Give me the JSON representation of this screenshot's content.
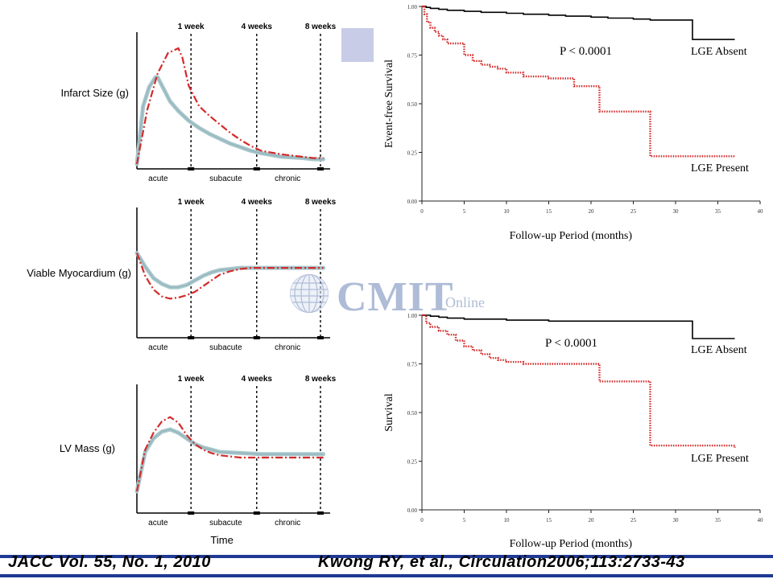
{
  "footer": {
    "ref_left": "JACC Vol. 55, No. 1, 2010",
    "ref_right": "Kwong RY, et al., Circulation2006;113:2733-43"
  },
  "watermark": {
    "name": "CMIT",
    "sub": "Online"
  },
  "colors": {
    "red": "#d42a2a",
    "teal": "#a9c7cc",
    "black": "#000000",
    "accent_square": "#c8cce6",
    "footer_blue": "#1f3a93"
  },
  "chart_data": [
    {
      "type": "line",
      "ylabel": "Infarct Size (g)",
      "xlabel": "",
      "time_markers": [
        "1 week",
        "4 weeks",
        "8 weeks"
      ],
      "phases": [
        "acute",
        "subacute",
        "chronic"
      ],
      "series": [
        {
          "style": "solid-teal",
          "x": [
            0,
            0.3,
            0.6,
            0.9,
            1.0,
            1.3,
            1.6,
            2.0,
            2.5,
            3.0,
            3.5,
            4.0,
            4.5,
            5.0,
            5.5,
            6.0,
            7.0,
            8.0,
            8.5,
            9.0
          ],
          "y": [
            0,
            48,
            64,
            72,
            72,
            62,
            52,
            44,
            36,
            30,
            25,
            21,
            17,
            14,
            11,
            9,
            6,
            5,
            4,
            4
          ]
        },
        {
          "style": "dashdot-red",
          "x": [
            0,
            0.5,
            1.0,
            1.5,
            2.0,
            2.2,
            2.5,
            3.0,
            3.5,
            4.0,
            4.5,
            5.0,
            5.5,
            6.0,
            7.0,
            8.0,
            8.5,
            9.0
          ],
          "y": [
            0,
            45,
            75,
            92,
            96,
            88,
            65,
            48,
            40,
            33,
            26,
            20,
            15,
            11,
            8,
            6,
            5,
            5
          ]
        }
      ]
    },
    {
      "type": "line",
      "ylabel": "Viable Myocardium (g)",
      "xlabel": "",
      "time_markers": [
        "1 week",
        "4 weeks",
        "8 weeks"
      ],
      "phases": [
        "acute",
        "subacute",
        "chronic"
      ],
      "series": [
        {
          "style": "solid-teal",
          "x": [
            0,
            0.4,
            0.8,
            1.2,
            1.6,
            2.0,
            2.4,
            2.8,
            3.2,
            3.6,
            4.0,
            4.5,
            5.0,
            5.5,
            6.0,
            7.0,
            8.0,
            9.0
          ],
          "y": [
            70,
            58,
            48,
            43,
            40,
            40,
            42,
            46,
            50,
            53,
            55,
            56,
            57,
            57,
            57,
            57,
            57,
            57
          ]
        },
        {
          "style": "dashdot-red",
          "x": [
            0,
            0.4,
            0.8,
            1.2,
            1.6,
            2.0,
            2.4,
            2.8,
            3.2,
            3.6,
            4.0,
            4.5,
            5.0,
            5.5,
            6.0,
            7.0,
            8.0,
            9.0
          ],
          "y": [
            70,
            50,
            38,
            32,
            30,
            31,
            33,
            36,
            41,
            46,
            51,
            54,
            56,
            57,
            57,
            57,
            57,
            57
          ]
        }
      ]
    },
    {
      "type": "line",
      "ylabel": "LV Mass (g)",
      "xlabel": "Time",
      "time_markers": [
        "1 week",
        "4 weeks",
        "8 weeks"
      ],
      "phases": [
        "acute",
        "subacute",
        "chronic"
      ],
      "series": [
        {
          "style": "solid-teal",
          "x": [
            0,
            0.4,
            0.8,
            1.2,
            1.6,
            2.0,
            2.4,
            2.8,
            3.2,
            3.6,
            4.0,
            5.0,
            6.0,
            7.0,
            8.0,
            9.0
          ],
          "y": [
            15,
            50,
            62,
            68,
            70,
            67,
            62,
            57,
            54,
            52,
            50,
            49,
            48,
            48,
            48,
            48
          ]
        },
        {
          "style": "dashdot-red",
          "x": [
            0,
            0.4,
            0.8,
            1.2,
            1.6,
            2.0,
            2.4,
            2.8,
            3.2,
            3.6,
            4.0,
            5.0,
            6.0,
            7.0,
            8.0,
            9.0
          ],
          "y": [
            15,
            52,
            67,
            77,
            81,
            76,
            65,
            57,
            52,
            49,
            47,
            45,
            45,
            45,
            45,
            45
          ]
        }
      ]
    },
    {
      "type": "line",
      "ylabel": "Event-free Survival",
      "xlabel": "Follow-up Period (months)",
      "xlim": [
        0,
        40
      ],
      "ylim": [
        0,
        1
      ],
      "x_ticks": [
        "0",
        "5",
        "10",
        "15",
        "20",
        "25",
        "30",
        "35",
        "40"
      ],
      "y_ticks": [
        "0.00",
        "0.25",
        "0.50",
        "0.75",
        "1.00"
      ],
      "annotation": "P < 0.0001",
      "series": [
        {
          "name": "LGE Absent",
          "style": "solid-black",
          "x": [
            0,
            0.5,
            1,
            2,
            3,
            5,
            7,
            10,
            12,
            15,
            17,
            20,
            22,
            25,
            27,
            30,
            32,
            32,
            37
          ],
          "y": [
            1.0,
            0.995,
            0.99,
            0.985,
            0.98,
            0.975,
            0.97,
            0.965,
            0.96,
            0.955,
            0.95,
            0.945,
            0.94,
            0.935,
            0.93,
            0.93,
            0.93,
            0.83,
            0.83
          ]
        },
        {
          "name": "LGE Present",
          "style": "dotted-red",
          "x": [
            0,
            0.3,
            0.6,
            1.0,
            1.5,
            2.0,
            2.5,
            3.0,
            4.5,
            5.0,
            6.0,
            7.0,
            8.0,
            9.0,
            10.0,
            12.0,
            15.0,
            17.0,
            18.0,
            21.0,
            21.0,
            27.0,
            27.0,
            37.0
          ],
          "y": [
            1.0,
            0.96,
            0.92,
            0.89,
            0.87,
            0.85,
            0.83,
            0.81,
            0.81,
            0.75,
            0.72,
            0.7,
            0.69,
            0.68,
            0.66,
            0.64,
            0.63,
            0.63,
            0.59,
            0.59,
            0.46,
            0.46,
            0.23,
            0.23
          ]
        }
      ]
    },
    {
      "type": "line",
      "ylabel": "Survival",
      "xlabel": "Follow-up Period (months)",
      "xlim": [
        0,
        40
      ],
      "ylim": [
        0,
        1
      ],
      "x_ticks": [
        "0",
        "5",
        "10",
        "15",
        "20",
        "25",
        "30",
        "35",
        "40"
      ],
      "y_ticks": [
        "0.00",
        "0.25",
        "0.50",
        "0.75",
        "1.00"
      ],
      "annotation": "P < 0.0001",
      "series": [
        {
          "name": "LGE Absent",
          "style": "solid-black",
          "x": [
            0,
            1,
            2,
            3,
            5,
            10,
            15,
            20,
            25,
            30,
            32,
            32,
            37
          ],
          "y": [
            1.0,
            0.995,
            0.99,
            0.985,
            0.98,
            0.975,
            0.97,
            0.97,
            0.97,
            0.97,
            0.97,
            0.88,
            0.88
          ]
        },
        {
          "name": "LGE Present",
          "style": "dotted-red",
          "x": [
            0,
            0.5,
            1.0,
            2.0,
            3.0,
            4.0,
            5.0,
            6.0,
            7.0,
            8.0,
            9.0,
            10.0,
            12.0,
            15.0,
            18.0,
            21.0,
            21.0,
            27.0,
            27.0,
            37.0
          ],
          "y": [
            1.0,
            0.96,
            0.94,
            0.92,
            0.9,
            0.87,
            0.84,
            0.82,
            0.8,
            0.78,
            0.77,
            0.76,
            0.75,
            0.75,
            0.75,
            0.75,
            0.66,
            0.66,
            0.33,
            0.32
          ]
        }
      ]
    }
  ]
}
